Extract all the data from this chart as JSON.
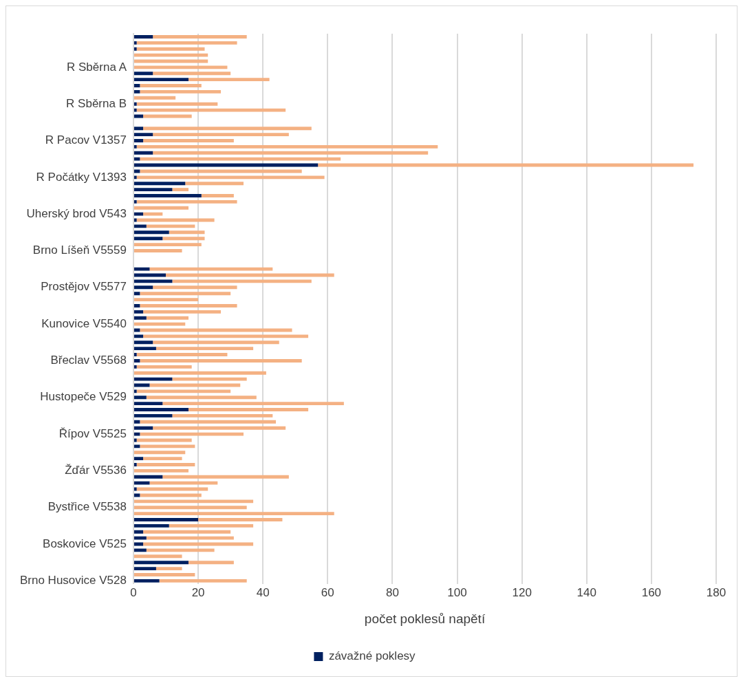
{
  "chart_data": {
    "type": "bar",
    "orientation": "horizontal",
    "stacked": true,
    "xlabel": "počet poklesů napětí",
    "categories": [
      null,
      null,
      null,
      null,
      null,
      "R Sběrna A",
      null,
      null,
      null,
      null,
      null,
      "R Sběrna B",
      null,
      null,
      null,
      null,
      null,
      "R Pacov V1357",
      null,
      null,
      null,
      null,
      null,
      "R Počátky V1393",
      null,
      null,
      null,
      null,
      null,
      "Uherský brod V543",
      null,
      null,
      null,
      null,
      null,
      "Brno Líšeň V5559",
      null,
      null,
      null,
      null,
      null,
      "Prostějov V5577",
      null,
      null,
      null,
      null,
      null,
      "Kunovice V5540",
      null,
      null,
      null,
      null,
      null,
      "Břeclav V5568",
      null,
      null,
      null,
      null,
      null,
      "Hustopeče V529",
      null,
      null,
      null,
      null,
      null,
      "Řípov V5525",
      null,
      null,
      null,
      null,
      null,
      "Žďár V5536",
      null,
      null,
      null,
      null,
      null,
      "Bystřice V5538",
      null,
      null,
      null,
      null,
      null,
      "Boskovice V525",
      null,
      null,
      null,
      null,
      null,
      "Brno Husovice V528"
    ],
    "series": [
      {
        "name": "závažné poklesy",
        "color": "#002060",
        "values": [
          6,
          1,
          1,
          0,
          0,
          0,
          6,
          17,
          2,
          2,
          0,
          1,
          1,
          3,
          0,
          3,
          6,
          3,
          1,
          6,
          2,
          57,
          2,
          1,
          16,
          12,
          21,
          1,
          0,
          3,
          1,
          4,
          11,
          9,
          0,
          0,
          0,
          0,
          5,
          10,
          12,
          6,
          2,
          0,
          2,
          3,
          4,
          0,
          2,
          3,
          6,
          7,
          1,
          2,
          1,
          0,
          12,
          5,
          1,
          4,
          9,
          17,
          12,
          2,
          6,
          2,
          1,
          2,
          0,
          3,
          1,
          0,
          9,
          5,
          1,
          2,
          0,
          0,
          0,
          20,
          11,
          3,
          4,
          3,
          4,
          0,
          17,
          7,
          0,
          8
        ]
      },
      {
        "color": "#f4b183",
        "values": [
          29,
          31,
          21,
          23,
          23,
          29,
          24,
          25,
          19,
          25,
          13,
          25,
          46,
          15,
          0,
          52,
          42,
          28,
          93,
          85,
          62,
          116,
          50,
          58,
          18,
          5,
          10,
          31,
          17,
          6,
          24,
          15,
          11,
          13,
          21,
          15,
          0,
          0,
          38,
          52,
          43,
          26,
          28,
          20,
          30,
          24,
          13,
          16,
          47,
          51,
          39,
          30,
          28,
          50,
          17,
          41,
          23,
          28,
          29,
          34,
          56,
          37,
          31,
          42,
          41,
          32,
          17,
          17,
          16,
          12,
          18,
          17,
          39,
          21,
          22,
          19,
          37,
          35,
          62,
          26,
          26,
          27,
          27,
          34,
          21,
          15,
          14,
          8,
          19,
          27
        ]
      }
    ],
    "xlim": [
      0,
      180
    ],
    "xticks": [
      0,
      20,
      40,
      60,
      80,
      100,
      120,
      140,
      160,
      180
    ],
    "grid": "x",
    "legend": "bottom"
  }
}
